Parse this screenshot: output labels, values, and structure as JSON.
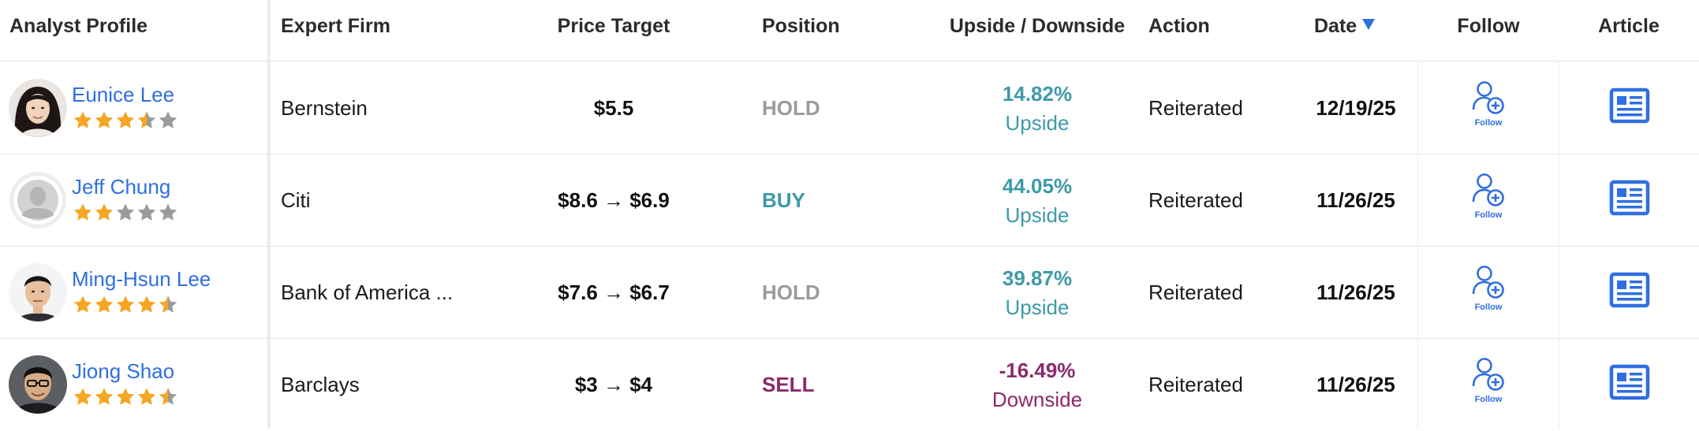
{
  "header": {
    "analyst_profile": "Analyst Profile",
    "expert_firm": "Expert Firm",
    "price_target": "Price Target",
    "position": "Position",
    "upside_downside": "Upside / Downside",
    "action": "Action",
    "date": "Date",
    "follow": "Follow",
    "article": "Article"
  },
  "colors": {
    "name_link": "#2f6fe0",
    "upside": "#3d9aa8",
    "downside": "#8b2a6b",
    "hold": "#9a9a9a",
    "buy": "#3d9aa8",
    "sell": "#8b2a6b",
    "star_filled": "#f5a623",
    "star_empty": "#9b9b9b",
    "sort_arrow": "#2f6fe0"
  },
  "icons": {
    "sort": "sort-descending-triangle-icon",
    "follow": "follow-user-plus-icon",
    "article": "article-newspaper-icon",
    "star": "star-icon"
  },
  "rows": [
    {
      "name": "Eunice Lee",
      "stars": 3.5,
      "firm": "Bernstein",
      "price_target": "$5.5",
      "position": "HOLD",
      "pct": "14.82%",
      "direction": "Upside",
      "action": "Reiterated",
      "date": "12/19/25",
      "follow_label": "Follow"
    },
    {
      "name": "Jeff Chung",
      "stars": 2,
      "firm": "Citi",
      "price_target": "$8.6 → $6.9",
      "position": "BUY",
      "pct": "44.05%",
      "direction": "Upside",
      "action": "Reiterated",
      "date": "11/26/25",
      "follow_label": "Follow"
    },
    {
      "name": "Ming-Hsun Lee",
      "stars": 4.5,
      "firm": "Bank of America ...",
      "price_target": "$7.6 → $6.7",
      "position": "HOLD",
      "pct": "39.87%",
      "direction": "Upside",
      "action": "Reiterated",
      "date": "11/26/25",
      "follow_label": "Follow"
    },
    {
      "name": "Jiong Shao",
      "stars": 4.5,
      "firm": "Barclays",
      "price_target": "$3 → $4",
      "position": "SELL",
      "pct": "-16.49%",
      "direction": "Downside",
      "action": "Reiterated",
      "date": "11/26/25",
      "follow_label": "Follow"
    }
  ]
}
